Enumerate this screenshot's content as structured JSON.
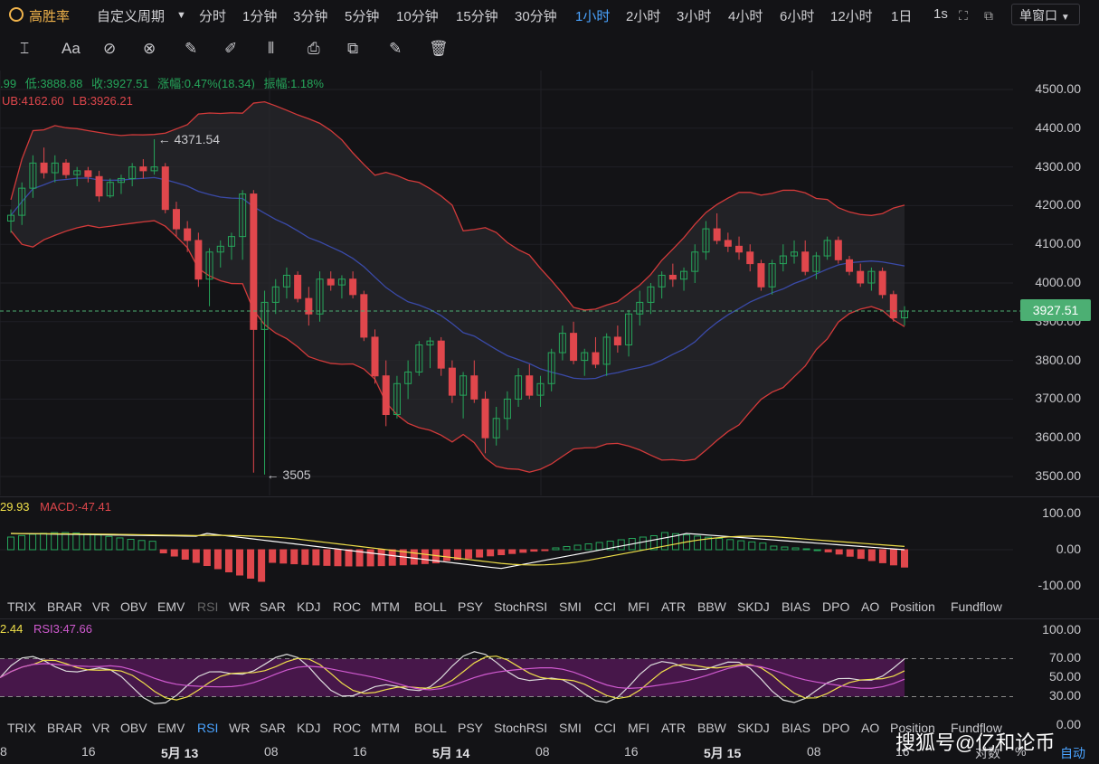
{
  "topbar": {
    "brand": "高胜率",
    "custom_period": "自定义周期",
    "periods": [
      "分时",
      "1分钟",
      "3分钟",
      "5分钟",
      "10分钟",
      "15分钟",
      "30分钟",
      "1小时",
      "2小时",
      "3小时",
      "4小时",
      "6小时",
      "12小时",
      "1日",
      "1s"
    ],
    "active_period": "1小时",
    "window_mode": "单窗口"
  },
  "toolbar_icons": [
    "line-tool-icon",
    "text-tool-icon",
    "ruler-icon",
    "eraser-icon",
    "pencil-icon",
    "brush-icon",
    "candle-icon",
    "lock-icon",
    "copy-icon",
    "note-icon",
    "trash-icon"
  ],
  "info": {
    "high_partial": ".99",
    "low": "低:3888.88",
    "close": "收:3927.51",
    "change": "涨幅:0.47%(18.34)",
    "amplitude": "振幅:1.18%",
    "ub": "UB:4162.60",
    "lb": "LB:3926.21",
    "max_annotation": "← 4371.54",
    "min_annotation": "← 3505"
  },
  "price_axis": [
    "4500.00",
    "4400.00",
    "4300.00",
    "4200.00",
    "4100.00",
    "4000.00",
    "3900.00",
    "3800.00",
    "3700.00",
    "3600.00",
    "3500.00"
  ],
  "current_price": "3927.51",
  "macd": {
    "dif_partial": "29.93",
    "macd_label": "MACD:-47.41",
    "axis": [
      "100.00",
      "0.00",
      "-100.00"
    ]
  },
  "indicator_tabs": [
    "TRIX",
    "BRAR",
    "VR",
    "OBV",
    "EMV",
    "RSI",
    "WR",
    "SAR",
    "KDJ",
    "ROC",
    "MTM",
    "BOLL",
    "PSY",
    "StochRSI",
    "SMI",
    "CCI",
    "MFI",
    "ATR",
    "BBW",
    "SKDJ",
    "BIAS",
    "DPO",
    "AO",
    "Position",
    "Fundflow"
  ],
  "rsi": {
    "rsi_partial": "2.44",
    "rsi3": "RSI3:47.66",
    "axis": [
      "100.00",
      "70.00",
      "50.00",
      "30.00",
      "0.00"
    ]
  },
  "time_axis": [
    "8",
    "16",
    "5月 13",
    "08",
    "16",
    "5月 14",
    "08",
    "16",
    "5月 15",
    "08",
    "16",
    "5月"
  ],
  "bottom_right": {
    "log": "对数",
    "pct": "%",
    "auto": "自动"
  },
  "watermark": "搜狐号@亿和论币",
  "colors": {
    "up": "#26a65b",
    "down": "#e0474c",
    "boll_band": "#d23a3a",
    "boll_mid": "#3a4aa8",
    "dif": "#ffffff",
    "dea": "#f0e04a",
    "rsi3": "#d05ad0"
  },
  "chart_data": {
    "type": "candlestick",
    "interval": "1小时",
    "ylim": [
      3480,
      4540
    ],
    "ohlc": [
      [
        4160,
        4190,
        4130,
        4175
      ],
      [
        4175,
        4260,
        4150,
        4245
      ],
      [
        4245,
        4330,
        4220,
        4310
      ],
      [
        4310,
        4350,
        4270,
        4285
      ],
      [
        4285,
        4330,
        4260,
        4310
      ],
      [
        4310,
        4320,
        4270,
        4280
      ],
      [
        4280,
        4300,
        4250,
        4290
      ],
      [
        4290,
        4300,
        4260,
        4275
      ],
      [
        4275,
        4290,
        4210,
        4225
      ],
      [
        4225,
        4270,
        4220,
        4260
      ],
      [
        4260,
        4280,
        4230,
        4270
      ],
      [
        4270,
        4310,
        4250,
        4300
      ],
      [
        4300,
        4320,
        4270,
        4290
      ],
      [
        4290,
        4371.54,
        4280,
        4300
      ],
      [
        4300,
        4310,
        4180,
        4190
      ],
      [
        4190,
        4210,
        4120,
        4140
      ],
      [
        4140,
        4160,
        4080,
        4110
      ],
      [
        4110,
        4130,
        3990,
        4010
      ],
      [
        4010,
        4090,
        3940,
        4080
      ],
      [
        4080,
        4110,
        4040,
        4095
      ],
      [
        4095,
        4130,
        4060,
        4120
      ],
      [
        4120,
        4240,
        4060,
        4230
      ],
      [
        4230,
        4240,
        3510,
        3880
      ],
      [
        3880,
        3980,
        3505,
        3950
      ],
      [
        3950,
        4010,
        3920,
        3990
      ],
      [
        3990,
        4040,
        3960,
        4020
      ],
      [
        4020,
        4030,
        3950,
        3960
      ],
      [
        3960,
        3990,
        3890,
        3920
      ],
      [
        3920,
        4030,
        3900,
        4010
      ],
      [
        4010,
        4030,
        3980,
        3995
      ],
      [
        3995,
        4020,
        3960,
        4010
      ],
      [
        4010,
        4030,
        3960,
        3970
      ],
      [
        3970,
        3980,
        3850,
        3860
      ],
      [
        3860,
        3880,
        3740,
        3760
      ],
      [
        3760,
        3800,
        3630,
        3660
      ],
      [
        3660,
        3760,
        3650,
        3740
      ],
      [
        3740,
        3800,
        3700,
        3770
      ],
      [
        3770,
        3850,
        3760,
        3840
      ],
      [
        3840,
        3860,
        3780,
        3850
      ],
      [
        3850,
        3860,
        3760,
        3780
      ],
      [
        3780,
        3800,
        3690,
        3710
      ],
      [
        3710,
        3770,
        3650,
        3760
      ],
      [
        3760,
        3800,
        3690,
        3700
      ],
      [
        3700,
        3720,
        3560,
        3600
      ],
      [
        3600,
        3680,
        3580,
        3650
      ],
      [
        3650,
        3720,
        3620,
        3700
      ],
      [
        3700,
        3780,
        3680,
        3760
      ],
      [
        3760,
        3790,
        3700,
        3710
      ],
      [
        3710,
        3760,
        3680,
        3740
      ],
      [
        3740,
        3830,
        3720,
        3820
      ],
      [
        3820,
        3890,
        3800,
        3870
      ],
      [
        3870,
        3900,
        3790,
        3800
      ],
      [
        3800,
        3830,
        3760,
        3820
      ],
      [
        3820,
        3860,
        3780,
        3790
      ],
      [
        3790,
        3870,
        3760,
        3860
      ],
      [
        3860,
        3890,
        3820,
        3840
      ],
      [
        3840,
        3930,
        3810,
        3920
      ],
      [
        3920,
        3980,
        3890,
        3950
      ],
      [
        3950,
        4000,
        3920,
        3990
      ],
      [
        3990,
        4030,
        3960,
        4020
      ],
      [
        4020,
        4050,
        3990,
        4010
      ],
      [
        4010,
        4040,
        3980,
        4030
      ],
      [
        4030,
        4100,
        4000,
        4080
      ],
      [
        4080,
        4160,
        4060,
        4140
      ],
      [
        4140,
        4180,
        4100,
        4110
      ],
      [
        4110,
        4130,
        4080,
        4095
      ],
      [
        4095,
        4120,
        4060,
        4080
      ],
      [
        4080,
        4100,
        4030,
        4050
      ],
      [
        4050,
        4060,
        3980,
        3990
      ],
      [
        3990,
        4060,
        3970,
        4050
      ],
      [
        4050,
        4100,
        4030,
        4070
      ],
      [
        4070,
        4110,
        4050,
        4080
      ],
      [
        4080,
        4110,
        4020,
        4030
      ],
      [
        4030,
        4080,
        4010,
        4070
      ],
      [
        4070,
        4120,
        4060,
        4110
      ],
      [
        4110,
        4120,
        4050,
        4060
      ],
      [
        4060,
        4070,
        4020,
        4030
      ],
      [
        4030,
        4050,
        3990,
        4000
      ],
      [
        4000,
        4040,
        3980,
        4030
      ],
      [
        4030,
        4040,
        3960,
        3970
      ],
      [
        3970,
        3980,
        3900,
        3910
      ],
      [
        3910,
        3940,
        3890,
        3927.51
      ]
    ]
  }
}
